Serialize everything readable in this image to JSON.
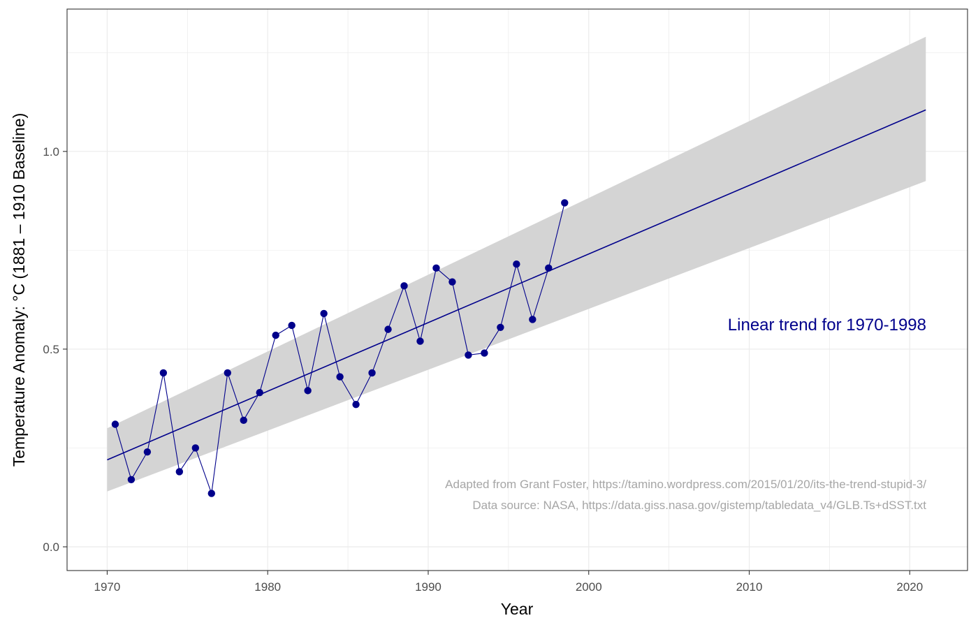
{
  "chart_data": {
    "type": "line",
    "xlabel": "Year",
    "ylabel": "Temperature Anomaly: °C   (1881 – 1910 Baseline)",
    "xlim": [
      1967.5,
      2023.6
    ],
    "ylim": [
      -0.06,
      1.36
    ],
    "x_ticks": [
      1970,
      1980,
      1990,
      2000,
      2010,
      2020
    ],
    "y_ticks": [
      0.0,
      0.5,
      1.0
    ],
    "x_tick_labels": [
      "1970",
      "1980",
      "1990",
      "2000",
      "2010",
      "2020"
    ],
    "y_tick_labels": [
      "0.0",
      "0.5",
      "1.0"
    ],
    "grid": true,
    "colors": {
      "series": "#00008B",
      "trend": "#00008B",
      "ribbon": "#d4d4d4",
      "grid": "#ebebeb",
      "caption": "#a6a6a6"
    },
    "series": [
      {
        "x": [
          1970.5,
          1971.5,
          1972.5,
          1973.5,
          1974.5,
          1975.5,
          1976.5,
          1977.5,
          1978.5,
          1979.5,
          1980.5,
          1981.5,
          1982.5,
          1983.5,
          1984.5,
          1985.5,
          1986.5,
          1987.5,
          1988.5,
          1989.5,
          1990.5,
          1991.5,
          1992.5,
          1993.5,
          1994.5,
          1995.5,
          1996.5,
          1997.5,
          1998.5
        ],
        "y": [
          0.31,
          0.17,
          0.24,
          0.44,
          0.19,
          0.25,
          0.135,
          0.44,
          0.32,
          0.39,
          0.535,
          0.56,
          0.395,
          0.59,
          0.43,
          0.36,
          0.44,
          0.55,
          0.66,
          0.52,
          0.705,
          0.67,
          0.485,
          0.49,
          0.555,
          0.715,
          0.575,
          0.705,
          0.87
        ]
      }
    ],
    "trend": {
      "x": [
        1970,
        2021
      ],
      "y": [
        0.22,
        1.105
      ],
      "ribbon_upper": [
        0.3,
        1.29
      ],
      "ribbon_lower": [
        0.14,
        0.925
      ]
    },
    "annotation": "Linear trend for 1970-1998",
    "caption_lines": [
      "Adapted from Grant Foster, https://tamino.wordpress.com/2015/01/20/its-the-trend-stupid-3/",
      "Data source: NASA, https://data.giss.nasa.gov/gistemp/tabledata_v4/GLB.Ts+dSST.txt"
    ]
  }
}
